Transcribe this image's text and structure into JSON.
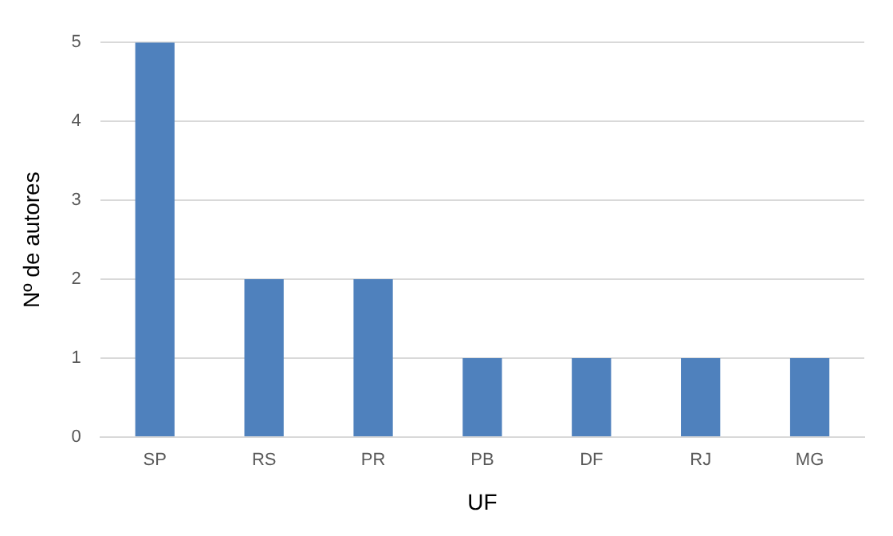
{
  "chart_data": {
    "type": "bar",
    "xlabel": "UF",
    "ylabel": "Nº de autores",
    "categories": [
      "SP",
      "RS",
      "PR",
      "PB",
      "DF",
      "RJ",
      "MG"
    ],
    "values": [
      5,
      2,
      2,
      1,
      1,
      1,
      1
    ],
    "color": "#4f81bd",
    "ylim": [
      0,
      5
    ],
    "yticks": [
      0,
      1,
      2,
      3,
      4,
      5
    ],
    "grid": "y"
  }
}
